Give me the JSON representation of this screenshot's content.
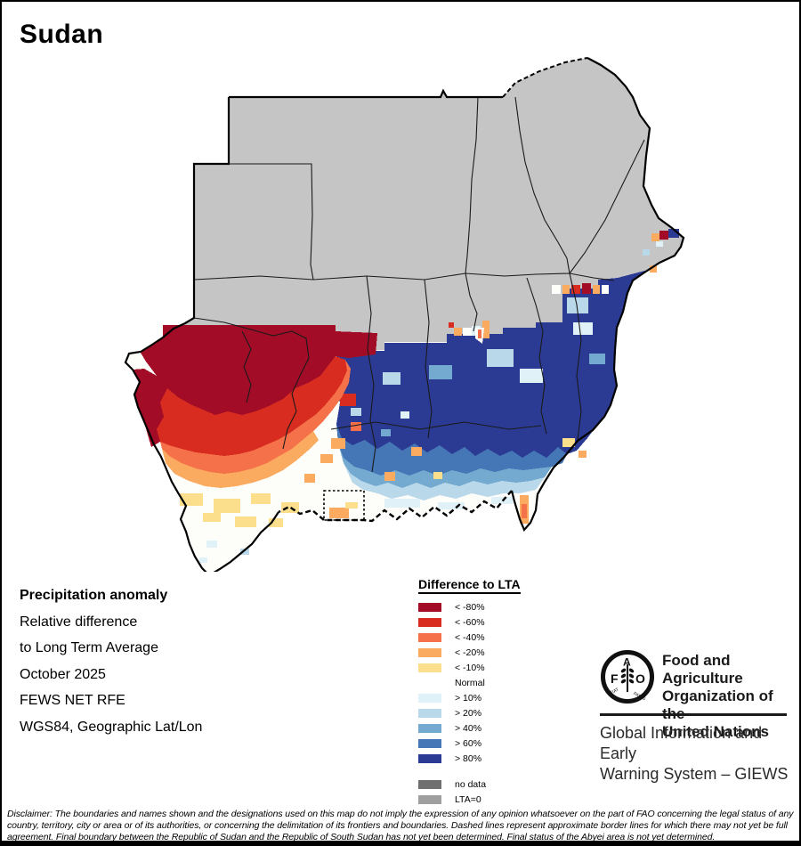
{
  "title": "Sudan",
  "map": {
    "description": "Raster precipitation anomaly map of Sudan, October 2025",
    "palette": {
      "m80": "#a30c26",
      "m60": "#d92c20",
      "m40": "#f4714a",
      "m20": "#fbab60",
      "m10": "#fcdf8d",
      "normal": "#fdfdfa",
      "p10": "#e0f1f8",
      "p20": "#b9d8e9",
      "p40": "#74aad0",
      "p60": "#4576b5",
      "p80": "#2b3b94",
      "no_data": "#6f6f6f",
      "lta0": "#9f9f9f",
      "clipped_gray": "#c9c9c9",
      "land_gray": "#c5c5c5",
      "border": "#000000"
    }
  },
  "legend": {
    "title": "Difference to LTA",
    "items": [
      {
        "label": "< -80%",
        "color": "#a30c26"
      },
      {
        "label": "< -60%",
        "color": "#d92c20"
      },
      {
        "label": "< -40%",
        "color": "#f4714a"
      },
      {
        "label": "< -20%",
        "color": "#fbab60"
      },
      {
        "label": "< -10%",
        "color": "#fcdf8d"
      },
      {
        "label": "Normal",
        "color": null
      },
      {
        "label": "> 10%",
        "color": "#e0f1f8"
      },
      {
        "label": "> 20%",
        "color": "#b9d8e9"
      },
      {
        "label": "> 40%",
        "color": "#74aad0"
      },
      {
        "label": "> 60%",
        "color": "#4576b5"
      },
      {
        "label": "> 80%",
        "color": "#2b3b94"
      }
    ],
    "extra_items": [
      {
        "label": "no data",
        "color": "#6f6f6f"
      },
      {
        "label": "LTA=0",
        "color": "#9f9f9f"
      },
      {
        "label": "",
        "color": "#c9c9c9"
      }
    ]
  },
  "info_block": {
    "heading": "Precipitation anomaly",
    "lines": [
      "Relative difference",
      "to Long Term Average",
      "October 2025",
      "FEWS NET RFE",
      "WGS84, Geographic Lat/Lon"
    ]
  },
  "fao": {
    "logo_letters": [
      "F",
      "A",
      "O"
    ],
    "motto_words": [
      "FIAT",
      "PANIS"
    ],
    "org_lines": [
      "Food and Agriculture",
      "Organization of the",
      "United Nations"
    ],
    "giews_lines": [
      "Global Information and Early",
      "Warning System – GIEWS"
    ]
  },
  "disclaimer_lines": [
    "Disclaimer: The boundaries and names shown and the designations used on this map do not imply the expression of any opinion whatsoever on the part of FAO concerning the legal status of any",
    "country, territory, city or area or of its authorities, or concerning the delimitation of its frontiers and boundaries. Dashed lines represent approximate border lines for which there may not yet be full",
    "agreement.  Final boundary between the Republic of Sudan and the Republic of South Sudan has not yet been determined. Final status of the Abyei area is not yet determined."
  ]
}
